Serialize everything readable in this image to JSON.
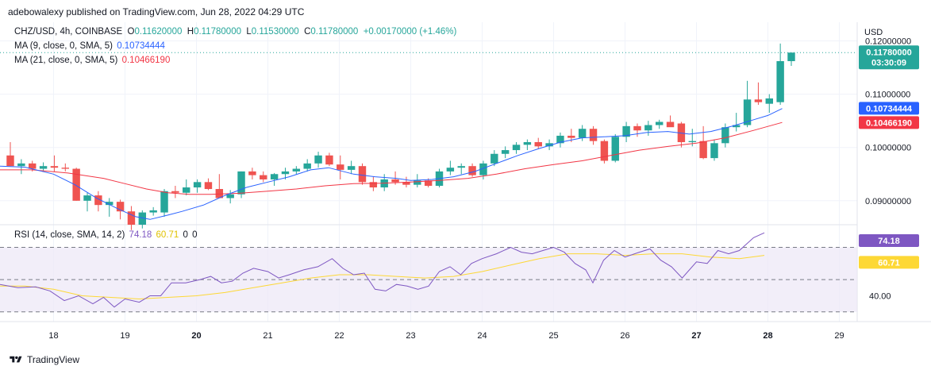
{
  "header": {
    "published": "adebowalexy published on TradingView.com, Jun 28, 2022 04:29 UTC"
  },
  "legend": {
    "symbol": "CHZ/USD, 4h, COINBASE",
    "o_label": "O",
    "o_value": "0.11620000",
    "h_label": "H",
    "h_value": "0.11780000",
    "l_label": "L",
    "l_value": "0.11530000",
    "c_label": "C",
    "c_value": "0.11780000",
    "change": "+0.00170000 (+1.46%)",
    "ma9_label": "MA (9, close, 0, SMA, 5)",
    "ma9_value": "0.10734444",
    "ma21_label": "MA (21, close, 0, SMA, 5)",
    "ma21_value": "0.10466190",
    "rsi_label": "RSI (14, close, SMA, 14, 2)",
    "rsi_value": "74.18",
    "rsi_ma_value": "60.71",
    "rsi_extra1": "0",
    "rsi_extra2": "0"
  },
  "axis": {
    "currency": "USD",
    "price_ticks": [
      "0.12000000",
      "0.11000000",
      "0.10000000",
      "0.09000000"
    ],
    "rsi_ticks": [
      "40.00"
    ],
    "x_ticks": [
      "18",
      "19",
      "20",
      "21",
      "22",
      "23",
      "24",
      "25",
      "26",
      "27",
      "28",
      "29"
    ],
    "bold_x_ticks": [
      "20",
      "27",
      "28"
    ]
  },
  "badges": {
    "last_price": "0.11780000",
    "countdown": "03:30:09",
    "ma9": "0.10734444",
    "ma21": "0.10466190",
    "rsi": "74.18",
    "rsi_ma": "60.71"
  },
  "footer": {
    "brand": "TradingView"
  },
  "colors": {
    "up": "#26a69a",
    "down": "#ef5350",
    "ma9": "#2962ff",
    "ma21": "#f23645",
    "rsi": "#7e57c2",
    "rsi_ma": "#fdd835",
    "rsi_band": "#ede7f6"
  },
  "chart_data": {
    "type": "candlestick",
    "timeframe": "4h",
    "price_range": [
      0.0855,
      0.1235
    ],
    "rsi_range": [
      24,
      84
    ],
    "rsi_levels": [
      70,
      50,
      30
    ],
    "x_start_day": 17.25,
    "x_end_day": 29.25,
    "candles": [
      {
        "o": 0.0985,
        "h": 0.101,
        "l": 0.0965,
        "c": 0.0965
      },
      {
        "o": 0.0965,
        "h": 0.0978,
        "l": 0.095,
        "c": 0.097
      },
      {
        "o": 0.097,
        "h": 0.0975,
        "l": 0.0955,
        "c": 0.096
      },
      {
        "o": 0.096,
        "h": 0.0972,
        "l": 0.0955,
        "c": 0.0965
      },
      {
        "o": 0.0965,
        "h": 0.0985,
        "l": 0.0955,
        "c": 0.0962
      },
      {
        "o": 0.0962,
        "h": 0.097,
        "l": 0.0955,
        "c": 0.096
      },
      {
        "o": 0.096,
        "h": 0.0962,
        "l": 0.09,
        "c": 0.09
      },
      {
        "o": 0.09,
        "h": 0.0915,
        "l": 0.088,
        "c": 0.091
      },
      {
        "o": 0.091,
        "h": 0.0918,
        "l": 0.088,
        "c": 0.0892
      },
      {
        "o": 0.0892,
        "h": 0.0905,
        "l": 0.087,
        "c": 0.0898
      },
      {
        "o": 0.0898,
        "h": 0.0902,
        "l": 0.0865,
        "c": 0.088
      },
      {
        "o": 0.088,
        "h": 0.089,
        "l": 0.0845,
        "c": 0.0855
      },
      {
        "o": 0.0855,
        "h": 0.0882,
        "l": 0.0848,
        "c": 0.0878
      },
      {
        "o": 0.0878,
        "h": 0.0888,
        "l": 0.0872,
        "c": 0.0882
      },
      {
        "o": 0.0878,
        "h": 0.0922,
        "l": 0.087,
        "c": 0.0918
      },
      {
        "o": 0.0918,
        "h": 0.0928,
        "l": 0.0905,
        "c": 0.0915
      },
      {
        "o": 0.0915,
        "h": 0.094,
        "l": 0.091,
        "c": 0.0925
      },
      {
        "o": 0.0925,
        "h": 0.094,
        "l": 0.0915,
        "c": 0.0935
      },
      {
        "o": 0.0935,
        "h": 0.0942,
        "l": 0.092,
        "c": 0.0922
      },
      {
        "o": 0.0922,
        "h": 0.095,
        "l": 0.0905,
        "c": 0.0905
      },
      {
        "o": 0.0905,
        "h": 0.092,
        "l": 0.0895,
        "c": 0.0912
      },
      {
        "o": 0.0912,
        "h": 0.0955,
        "l": 0.0905,
        "c": 0.0955
      },
      {
        "o": 0.0955,
        "h": 0.0962,
        "l": 0.094,
        "c": 0.0948
      },
      {
        "o": 0.0948,
        "h": 0.0955,
        "l": 0.0935,
        "c": 0.094
      },
      {
        "o": 0.094,
        "h": 0.0952,
        "l": 0.0928,
        "c": 0.095
      },
      {
        "o": 0.095,
        "h": 0.0962,
        "l": 0.094,
        "c": 0.0955
      },
      {
        "o": 0.0955,
        "h": 0.0965,
        "l": 0.095,
        "c": 0.096
      },
      {
        "o": 0.096,
        "h": 0.0978,
        "l": 0.0955,
        "c": 0.097
      },
      {
        "o": 0.097,
        "h": 0.0992,
        "l": 0.0962,
        "c": 0.0985
      },
      {
        "o": 0.0985,
        "h": 0.099,
        "l": 0.0965,
        "c": 0.0968
      },
      {
        "o": 0.0968,
        "h": 0.0985,
        "l": 0.094,
        "c": 0.0958
      },
      {
        "o": 0.0958,
        "h": 0.0975,
        "l": 0.095,
        "c": 0.0965
      },
      {
        "o": 0.0965,
        "h": 0.097,
        "l": 0.093,
        "c": 0.0935
      },
      {
        "o": 0.0935,
        "h": 0.0945,
        "l": 0.0918,
        "c": 0.0925
      },
      {
        "o": 0.0925,
        "h": 0.095,
        "l": 0.0918,
        "c": 0.094
      },
      {
        "o": 0.094,
        "h": 0.0955,
        "l": 0.093,
        "c": 0.0935
      },
      {
        "o": 0.0935,
        "h": 0.0945,
        "l": 0.0925,
        "c": 0.093
      },
      {
        "o": 0.093,
        "h": 0.095,
        "l": 0.0925,
        "c": 0.0938
      },
      {
        "o": 0.0938,
        "h": 0.0942,
        "l": 0.0925,
        "c": 0.0928
      },
      {
        "o": 0.0928,
        "h": 0.096,
        "l": 0.0925,
        "c": 0.0955
      },
      {
        "o": 0.0955,
        "h": 0.0975,
        "l": 0.0948,
        "c": 0.0962
      },
      {
        "o": 0.0962,
        "h": 0.097,
        "l": 0.095,
        "c": 0.0965
      },
      {
        "o": 0.0965,
        "h": 0.097,
        "l": 0.0945,
        "c": 0.0948
      },
      {
        "o": 0.0948,
        "h": 0.0975,
        "l": 0.094,
        "c": 0.097
      },
      {
        "o": 0.097,
        "h": 0.0995,
        "l": 0.0965,
        "c": 0.0988
      },
      {
        "o": 0.0988,
        "h": 0.1002,
        "l": 0.098,
        "c": 0.0995
      },
      {
        "o": 0.0995,
        "h": 0.101,
        "l": 0.0988,
        "c": 0.1005
      },
      {
        "o": 0.1005,
        "h": 0.1015,
        "l": 0.0995,
        "c": 0.101
      },
      {
        "o": 0.101,
        "h": 0.1018,
        "l": 0.0998,
        "c": 0.1002
      },
      {
        "o": 0.1002,
        "h": 0.1015,
        "l": 0.0995,
        "c": 0.1008
      },
      {
        "o": 0.1008,
        "h": 0.1028,
        "l": 0.1,
        "c": 0.1022
      },
      {
        "o": 0.1022,
        "h": 0.1035,
        "l": 0.101,
        "c": 0.1018
      },
      {
        "o": 0.1018,
        "h": 0.1042,
        "l": 0.1012,
        "c": 0.1035
      },
      {
        "o": 0.1035,
        "h": 0.104,
        "l": 0.1005,
        "c": 0.1012
      },
      {
        "o": 0.1012,
        "h": 0.1015,
        "l": 0.097,
        "c": 0.0975
      },
      {
        "o": 0.0975,
        "h": 0.1025,
        "l": 0.0972,
        "c": 0.102
      },
      {
        "o": 0.102,
        "h": 0.1048,
        "l": 0.101,
        "c": 0.104
      },
      {
        "o": 0.104,
        "h": 0.1045,
        "l": 0.102,
        "c": 0.1032
      },
      {
        "o": 0.1032,
        "h": 0.105,
        "l": 0.1022,
        "c": 0.1042
      },
      {
        "o": 0.1042,
        "h": 0.1052,
        "l": 0.1035,
        "c": 0.1048
      },
      {
        "o": 0.1048,
        "h": 0.106,
        "l": 0.104,
        "c": 0.1038
      },
      {
        "o": 0.1045,
        "h": 0.1048,
        "l": 0.1,
        "c": 0.101
      },
      {
        "o": 0.101,
        "h": 0.1035,
        "l": 0.1002,
        "c": 0.1012
      },
      {
        "o": 0.1012,
        "h": 0.104,
        "l": 0.0978,
        "c": 0.098
      },
      {
        "o": 0.098,
        "h": 0.1015,
        "l": 0.0975,
        "c": 0.1008
      },
      {
        "o": 0.1008,
        "h": 0.1045,
        "l": 0.1,
        "c": 0.1038
      },
      {
        "o": 0.1038,
        "h": 0.1065,
        "l": 0.103,
        "c": 0.1042
      },
      {
        "o": 0.1042,
        "h": 0.1125,
        "l": 0.1038,
        "c": 0.109
      },
      {
        "o": 0.109,
        "h": 0.1122,
        "l": 0.108,
        "c": 0.1085
      },
      {
        "o": 0.1082,
        "h": 0.11,
        "l": 0.1065,
        "c": 0.1092
      },
      {
        "o": 0.1085,
        "h": 0.1195,
        "l": 0.108,
        "c": 0.1162
      },
      {
        "o": 0.1162,
        "h": 0.1178,
        "l": 0.1153,
        "c": 0.1178
      }
    ],
    "ma9": [
      [
        17.25,
        0.0965
      ],
      [
        17.6,
        0.0963
      ],
      [
        18.0,
        0.095
      ],
      [
        18.3,
        0.093
      ],
      [
        18.6,
        0.0905
      ],
      [
        18.9,
        0.0885
      ],
      [
        19.15,
        0.087
      ],
      [
        19.35,
        0.0865
      ],
      [
        19.6,
        0.0873
      ],
      [
        19.8,
        0.088
      ],
      [
        20.1,
        0.0892
      ],
      [
        20.4,
        0.091
      ],
      [
        20.7,
        0.0925
      ],
      [
        21.0,
        0.0935
      ],
      [
        21.3,
        0.0945
      ],
      [
        21.6,
        0.0958
      ],
      [
        21.85,
        0.0962
      ],
      [
        22.2,
        0.095
      ],
      [
        22.5,
        0.0945
      ],
      [
        22.8,
        0.0942
      ],
      [
        23.0,
        0.0938
      ],
      [
        23.3,
        0.094
      ],
      [
        23.6,
        0.0945
      ],
      [
        23.9,
        0.0955
      ],
      [
        24.2,
        0.097
      ],
      [
        24.5,
        0.0985
      ],
      [
        24.8,
        0.0998
      ],
      [
        25.1,
        0.101
      ],
      [
        25.4,
        0.1018
      ],
      [
        25.7,
        0.102
      ],
      [
        26.0,
        0.1022
      ],
      [
        26.3,
        0.1028
      ],
      [
        26.6,
        0.103
      ],
      [
        26.9,
        0.1025
      ],
      [
        27.2,
        0.103
      ],
      [
        27.5,
        0.104
      ],
      [
        27.8,
        0.1052
      ],
      [
        28.0,
        0.106
      ],
      [
        28.2,
        0.1073
      ]
    ],
    "ma21": [
      [
        17.25,
        0.0958
      ],
      [
        17.7,
        0.0958
      ],
      [
        18.2,
        0.0952
      ],
      [
        18.7,
        0.0942
      ],
      [
        19.0,
        0.0932
      ],
      [
        19.3,
        0.0922
      ],
      [
        19.6,
        0.0915
      ],
      [
        19.9,
        0.0912
      ],
      [
        20.2,
        0.0912
      ],
      [
        20.6,
        0.0914
      ],
      [
        21.0,
        0.0918
      ],
      [
        21.4,
        0.0922
      ],
      [
        21.8,
        0.0928
      ],
      [
        22.2,
        0.0932
      ],
      [
        22.6,
        0.0933
      ],
      [
        23.0,
        0.0935
      ],
      [
        23.4,
        0.0938
      ],
      [
        23.8,
        0.0942
      ],
      [
        24.2,
        0.095
      ],
      [
        24.6,
        0.096
      ],
      [
        25.0,
        0.0968
      ],
      [
        25.4,
        0.0975
      ],
      [
        25.8,
        0.0985
      ],
      [
        26.2,
        0.0995
      ],
      [
        26.6,
        0.1002
      ],
      [
        27.0,
        0.1008
      ],
      [
        27.4,
        0.1018
      ],
      [
        27.8,
        0.1032
      ],
      [
        28.2,
        0.1047
      ]
    ],
    "rsi": [
      [
        17.25,
        47
      ],
      [
        17.5,
        45
      ],
      [
        17.75,
        45.5
      ],
      [
        17.95,
        43
      ],
      [
        18.15,
        37
      ],
      [
        18.35,
        40
      ],
      [
        18.55,
        35
      ],
      [
        18.7,
        39
      ],
      [
        18.85,
        33
      ],
      [
        19.0,
        38
      ],
      [
        19.2,
        36
      ],
      [
        19.35,
        40
      ],
      [
        19.5,
        40
      ],
      [
        19.65,
        48
      ],
      [
        19.85,
        48
      ],
      [
        20.05,
        50
      ],
      [
        20.2,
        52
      ],
      [
        20.35,
        48
      ],
      [
        20.5,
        49
      ],
      [
        20.65,
        54
      ],
      [
        20.8,
        57
      ],
      [
        21.0,
        55
      ],
      [
        21.15,
        51
      ],
      [
        21.3,
        53
      ],
      [
        21.5,
        56
      ],
      [
        21.7,
        58
      ],
      [
        21.9,
        63
      ],
      [
        22.05,
        57
      ],
      [
        22.2,
        53
      ],
      [
        22.35,
        54
      ],
      [
        22.5,
        44
      ],
      [
        22.65,
        43
      ],
      [
        22.8,
        47
      ],
      [
        22.95,
        46
      ],
      [
        23.1,
        44
      ],
      [
        23.25,
        46
      ],
      [
        23.4,
        55
      ],
      [
        23.55,
        58
      ],
      [
        23.7,
        53
      ],
      [
        23.85,
        60
      ],
      [
        24.0,
        63
      ],
      [
        24.2,
        66
      ],
      [
        24.4,
        70
      ],
      [
        24.55,
        67
      ],
      [
        24.7,
        66
      ],
      [
        24.85,
        68
      ],
      [
        25.0,
        70
      ],
      [
        25.15,
        67
      ],
      [
        25.3,
        60
      ],
      [
        25.45,
        56
      ],
      [
        25.55,
        48
      ],
      [
        25.7,
        62
      ],
      [
        25.85,
        68
      ],
      [
        26.0,
        64
      ],
      [
        26.2,
        67
      ],
      [
        26.35,
        69
      ],
      [
        26.5,
        62
      ],
      [
        26.65,
        58
      ],
      [
        26.8,
        51
      ],
      [
        27.0,
        61
      ],
      [
        27.15,
        60
      ],
      [
        27.3,
        68
      ],
      [
        27.45,
        66
      ],
      [
        27.6,
        68
      ],
      [
        27.8,
        76
      ],
      [
        27.95,
        79
      ]
    ],
    "rsi_ma": [
      [
        17.25,
        46
      ],
      [
        17.6,
        46
      ],
      [
        18.0,
        44
      ],
      [
        18.4,
        40
      ],
      [
        18.8,
        39
      ],
      [
        19.2,
        38
      ],
      [
        19.6,
        39
      ],
      [
        20.0,
        40
      ],
      [
        20.4,
        42
      ],
      [
        20.8,
        45
      ],
      [
        21.2,
        48
      ],
      [
        21.6,
        51
      ],
      [
        22.0,
        53
      ],
      [
        22.4,
        53
      ],
      [
        22.8,
        52
      ],
      [
        23.2,
        51
      ],
      [
        23.6,
        52
      ],
      [
        24.0,
        55
      ],
      [
        24.4,
        59
      ],
      [
        24.8,
        63
      ],
      [
        25.2,
        66
      ],
      [
        25.6,
        66
      ],
      [
        26.0,
        65
      ],
      [
        26.4,
        66
      ],
      [
        26.8,
        66
      ],
      [
        27.2,
        64
      ],
      [
        27.6,
        63
      ],
      [
        27.95,
        65
      ]
    ]
  }
}
